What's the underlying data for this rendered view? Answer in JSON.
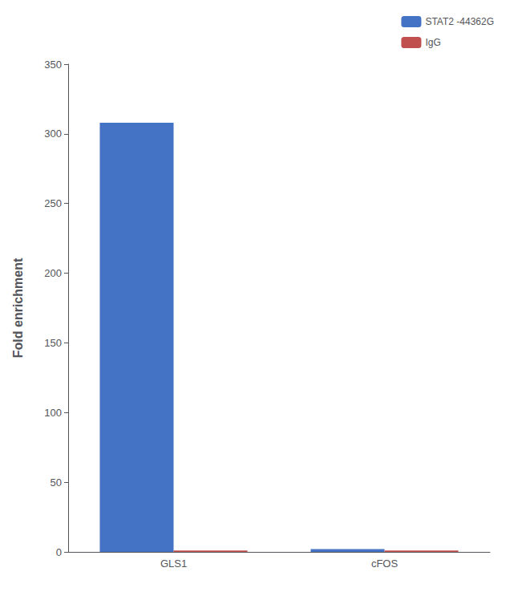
{
  "chart_data": {
    "type": "bar",
    "categories": [
      "GLS1",
      "cFOS"
    ],
    "series": [
      {
        "name": "STAT2 -44362G",
        "color": "#4472C4",
        "values": [
          308,
          2
        ]
      },
      {
        "name": "IgG",
        "color": "#C0504D",
        "values": [
          1,
          1
        ]
      }
    ],
    "ylabel": "Fold enrichment",
    "ylim": [
      0,
      350
    ],
    "yticks": [
      0,
      50,
      100,
      150,
      200,
      250,
      300,
      350
    ],
    "grid": false,
    "legend": "upper right"
  }
}
